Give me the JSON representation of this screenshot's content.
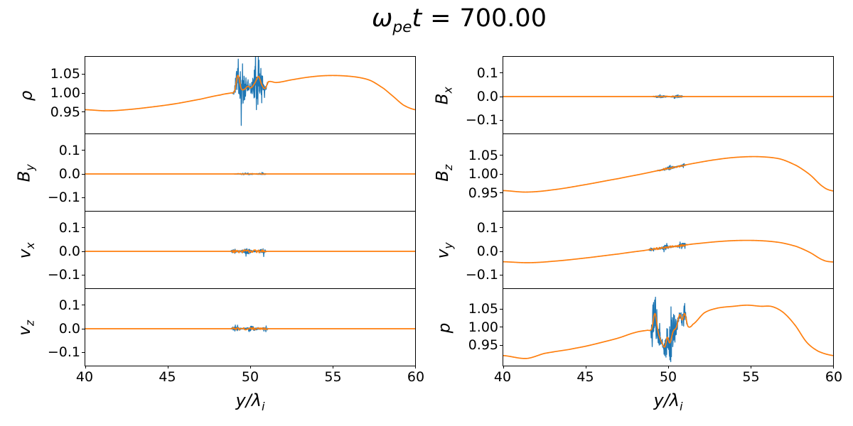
{
  "title": {
    "omega": "ω",
    "omega_sub": "pe",
    "variable": "t",
    "eq": "=",
    "value": "700.00"
  },
  "colors": {
    "raw_series": "#1f77b4",
    "smoothed_series": "#ff7f0e",
    "axis": "#000000",
    "background": "#ffffff"
  },
  "chart_data": {
    "type": "line",
    "layout": "4x2 stacked shared-x panels",
    "xlim": [
      40,
      60
    ],
    "xticks": [
      {
        "v": 40,
        "label": "40"
      },
      {
        "v": 45,
        "label": "45"
      },
      {
        "v": 50,
        "label": "50"
      },
      {
        "v": 55,
        "label": "55"
      },
      {
        "v": 60,
        "label": "60"
      }
    ],
    "xlabel": {
      "var": "y",
      "slash": "/",
      "lambda": "λ",
      "sub": "i"
    },
    "legend": "none",
    "series_roles": [
      {
        "name": "raw",
        "color": "#1f77b4",
        "description": "noisy raw signal, visible near the shock region y/λi ≈ 49–51"
      },
      {
        "name": "smoothed",
        "color": "#ff7f0e",
        "description": "smoothed profile drawn on top"
      }
    ],
    "panels": [
      {
        "id": "rho",
        "col": 0,
        "row": 0,
        "label": {
          "base": "ρ",
          "sub": ""
        },
        "ylim": [
          0.893,
          1.096
        ],
        "yticks": [
          {
            "v": 1.05,
            "label": "1.05"
          },
          {
            "v": 1.0,
            "label": "1.00"
          },
          {
            "v": 0.95,
            "label": "0.95"
          }
        ],
        "smooth": [
          [
            40,
            0.956
          ],
          [
            41.3,
            0.953
          ],
          [
            42.5,
            0.956
          ],
          [
            44,
            0.963
          ],
          [
            45.5,
            0.972
          ],
          [
            47,
            0.984
          ],
          [
            48.2,
            0.995
          ],
          [
            48.8,
            1.0
          ],
          [
            49.05,
            1.005
          ],
          [
            49.25,
            1.047
          ],
          [
            49.45,
            1.012
          ],
          [
            49.65,
            1.01
          ],
          [
            49.85,
            1.018
          ],
          [
            50.05,
            1.014
          ],
          [
            50.3,
            1.028
          ],
          [
            50.5,
            1.044
          ],
          [
            50.7,
            1.022
          ],
          [
            50.9,
            1.012
          ],
          [
            51.1,
            1.03
          ],
          [
            51.6,
            1.028
          ],
          [
            52.5,
            1.035
          ],
          [
            53.5,
            1.042
          ],
          [
            54.5,
            1.046
          ],
          [
            55.5,
            1.046
          ],
          [
            56.5,
            1.042
          ],
          [
            57.3,
            1.033
          ],
          [
            58.1,
            1.012
          ],
          [
            58.7,
            0.99
          ],
          [
            59.3,
            0.968
          ],
          [
            60,
            0.956
          ]
        ],
        "noise": {
          "x0": 48.9,
          "x1": 51.1,
          "amp": 0.048,
          "seed": 11,
          "orange_amp": 0
        }
      },
      {
        "id": "By",
        "col": 0,
        "row": 1,
        "label": {
          "base": "B",
          "sub": "y"
        },
        "ylim": [
          -0.156,
          0.168
        ],
        "yticks": [
          {
            "v": 0.1,
            "label": "0.1"
          },
          {
            "v": 0.0,
            "label": "0.0"
          },
          {
            "v": -0.1,
            "label": "−0.1"
          }
        ],
        "smooth": [
          [
            40,
            0
          ],
          [
            45,
            0
          ],
          [
            50,
            0
          ],
          [
            55,
            0
          ],
          [
            60,
            0
          ]
        ],
        "noise": {
          "x0": 49.0,
          "x1": 51.0,
          "amp": 0.004,
          "seed": 22,
          "orange_amp": 0.0015
        }
      },
      {
        "id": "vx",
        "col": 0,
        "row": 2,
        "label": {
          "base": "v",
          "sub": "x"
        },
        "ylim": [
          -0.156,
          0.168
        ],
        "yticks": [
          {
            "v": 0.1,
            "label": "0.1"
          },
          {
            "v": 0.0,
            "label": "0.0"
          },
          {
            "v": -0.1,
            "label": "−0.1"
          }
        ],
        "smooth": [
          [
            40,
            0
          ],
          [
            45,
            0
          ],
          [
            50,
            0
          ],
          [
            55,
            0
          ],
          [
            60,
            0
          ]
        ],
        "noise": {
          "x0": 48.8,
          "x1": 51.0,
          "amp": 0.011,
          "seed": 33,
          "orange_amp": 0.006
        }
      },
      {
        "id": "vz",
        "col": 0,
        "row": 3,
        "label": {
          "base": "v",
          "sub": "z"
        },
        "ylim": [
          -0.156,
          0.168
        ],
        "yticks": [
          {
            "v": 0.1,
            "label": "0.1"
          },
          {
            "v": 0.0,
            "label": "0.0"
          },
          {
            "v": -0.1,
            "label": "−0.1"
          }
        ],
        "smooth": [
          [
            40,
            0
          ],
          [
            45,
            0
          ],
          [
            50,
            0
          ],
          [
            55,
            0
          ],
          [
            60,
            0
          ]
        ],
        "noise": {
          "x0": 48.8,
          "x1": 51.1,
          "amp": 0.01,
          "seed": 44,
          "orange_amp": 0.005
        }
      },
      {
        "id": "Bx",
        "col": 1,
        "row": 0,
        "label": {
          "base": "B",
          "sub": "x"
        },
        "ylim": [
          -0.156,
          0.168
        ],
        "yticks": [
          {
            "v": 0.1,
            "label": "0.1"
          },
          {
            "v": 0.0,
            "label": "0.0"
          },
          {
            "v": -0.1,
            "label": "−0.1"
          }
        ],
        "smooth": [
          [
            40,
            0
          ],
          [
            45,
            0
          ],
          [
            50,
            0
          ],
          [
            55,
            0
          ],
          [
            60,
            0
          ]
        ],
        "noise": {
          "x0": 49.0,
          "x1": 51.0,
          "amp": 0.005,
          "seed": 55,
          "orange_amp": 0.002
        }
      },
      {
        "id": "Bz",
        "col": 1,
        "row": 1,
        "label": {
          "base": "B",
          "sub": "z"
        },
        "ylim": [
          0.902,
          1.106
        ],
        "yticks": [
          {
            "v": 1.05,
            "label": "1.05"
          },
          {
            "v": 1.0,
            "label": "1.00"
          },
          {
            "v": 0.95,
            "label": "0.95"
          }
        ],
        "smooth": [
          [
            40,
            0.956
          ],
          [
            41.4,
            0.952
          ],
          [
            43,
            0.958
          ],
          [
            45,
            0.972
          ],
          [
            47,
            0.988
          ],
          [
            48.5,
            1.001
          ],
          [
            50,
            1.015
          ],
          [
            51.5,
            1.028
          ],
          [
            53,
            1.039
          ],
          [
            54.3,
            1.045
          ],
          [
            55.6,
            1.046
          ],
          [
            56.8,
            1.04
          ],
          [
            57.8,
            1.022
          ],
          [
            58.6,
            0.998
          ],
          [
            59.4,
            0.966
          ],
          [
            60,
            0.955
          ]
        ],
        "noise": {
          "x0": 49.3,
          "x1": 51.1,
          "amp": 0.004,
          "seed": 66,
          "orange_amp": 0.002
        }
      },
      {
        "id": "vy",
        "col": 1,
        "row": 2,
        "label": {
          "base": "v",
          "sub": "y"
        },
        "ylim": [
          -0.156,
          0.168
        ],
        "yticks": [
          {
            "v": 0.1,
            "label": "0.1"
          },
          {
            "v": 0.0,
            "label": "0.0"
          },
          {
            "v": -0.1,
            "label": "−0.1"
          }
        ],
        "smooth": [
          [
            40,
            -0.044
          ],
          [
            41.5,
            -0.048
          ],
          [
            43,
            -0.042
          ],
          [
            45,
            -0.028
          ],
          [
            47,
            -0.011
          ],
          [
            48.5,
            0.003
          ],
          [
            49.5,
            0.013
          ],
          [
            50.5,
            0.022
          ],
          [
            51.5,
            0.031
          ],
          [
            53,
            0.041
          ],
          [
            54.3,
            0.046
          ],
          [
            55.6,
            0.045
          ],
          [
            56.8,
            0.037
          ],
          [
            57.8,
            0.02
          ],
          [
            58.6,
            -0.005
          ],
          [
            59.4,
            -0.037
          ],
          [
            60,
            -0.045
          ]
        ],
        "noise": {
          "x0": 48.8,
          "x1": 51.2,
          "amp": 0.009,
          "seed": 77,
          "orange_amp": 0.004
        }
      },
      {
        "id": "p",
        "col": 1,
        "row": 3,
        "label": {
          "base": "p",
          "sub": ""
        },
        "ylim": [
          0.893,
          1.106
        ],
        "yticks": [
          {
            "v": 1.05,
            "label": "1.05"
          },
          {
            "v": 1.0,
            "label": "1.00"
          },
          {
            "v": 0.95,
            "label": "0.95"
          }
        ],
        "smooth": [
          [
            40,
            0.921
          ],
          [
            41.4,
            0.913
          ],
          [
            42.5,
            0.927
          ],
          [
            44,
            0.938
          ],
          [
            45,
            0.947
          ],
          [
            46,
            0.958
          ],
          [
            47,
            0.97
          ],
          [
            48,
            0.985
          ],
          [
            48.7,
            0.991
          ],
          [
            49.0,
            0.995
          ],
          [
            49.2,
            1.038
          ],
          [
            49.4,
            0.985
          ],
          [
            49.6,
            0.958
          ],
          [
            49.8,
            0.945
          ],
          [
            49.95,
            0.972
          ],
          [
            50.1,
            0.956
          ],
          [
            50.3,
            0.988
          ],
          [
            50.5,
            1.0
          ],
          [
            50.7,
            1.035
          ],
          [
            50.85,
            1.02
          ],
          [
            51.0,
            1.038
          ],
          [
            51.2,
            1.002
          ],
          [
            51.5,
            1.008
          ],
          [
            52.2,
            1.04
          ],
          [
            53,
            1.053
          ],
          [
            54,
            1.058
          ],
          [
            54.8,
            1.061
          ],
          [
            55.6,
            1.058
          ],
          [
            56.3,
            1.057
          ],
          [
            57,
            1.04
          ],
          [
            57.7,
            1.005
          ],
          [
            58.4,
            0.958
          ],
          [
            59.1,
            0.933
          ],
          [
            60,
            0.921
          ]
        ],
        "noise": {
          "x0": 48.9,
          "x1": 51.15,
          "amp": 0.05,
          "seed": 88,
          "orange_amp": 0
        }
      }
    ]
  }
}
